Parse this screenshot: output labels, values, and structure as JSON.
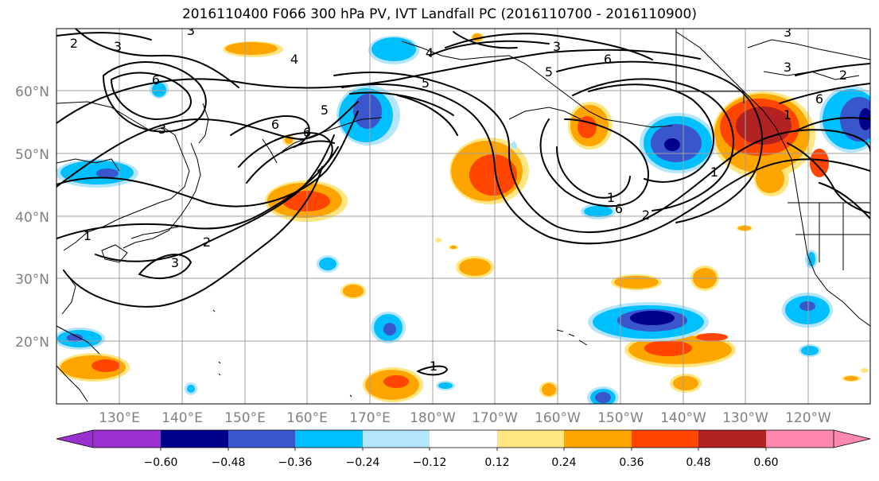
{
  "title": "2016110400 F066 300 hPa PV, IVT Landfall PC (2016110700 - 2016110900)",
  "lat_labels": [
    "60°N",
    "50°N",
    "40°N",
    "30°N",
    "20°N"
  ],
  "lon_labels": [
    "130°E",
    "140°E",
    "150°E",
    "160°E",
    "170°E",
    "180°W",
    "170°W",
    "160°W",
    "150°W",
    "140°W",
    "130°W",
    "120°W"
  ],
  "colorbar": {
    "tick_labels": [
      "−0.60",
      "−0.48",
      "−0.36",
      "−0.24",
      "−0.12",
      "0.12",
      "0.24",
      "0.36",
      "0.48",
      "0.60"
    ],
    "colors": [
      "#9b30d0",
      "#00008b",
      "#3a56cc",
      "#00bfff",
      "#b3e5fc",
      "#ffffff",
      "#ffe680",
      "#ffa500",
      "#ff4500",
      "#b22222",
      "#ff88b0"
    ]
  },
  "contour_labels": [
    "2",
    "3",
    "4",
    "3",
    "5",
    "6",
    "3",
    "5",
    "6",
    "6",
    "3",
    "5",
    "4",
    "3",
    "3",
    "1",
    "2",
    "3",
    "6",
    "1",
    "2",
    "1",
    "6",
    "1",
    "2",
    "1",
    "6"
  ],
  "colors": {
    "contour": "#000000",
    "grid": "#a0a0a0",
    "axis_text": "#808080"
  }
}
